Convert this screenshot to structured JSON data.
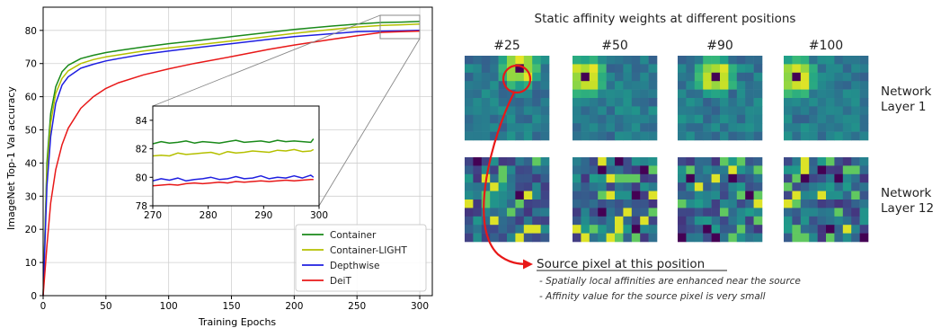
{
  "chart_data": [
    {
      "type": "line",
      "xlabel": "Training Epochs",
      "ylabel": "ImageNet Top-1 Val accuracy",
      "xlim": [
        0,
        310
      ],
      "ylim": [
        0,
        87
      ],
      "x_ticks": [
        0,
        50,
        100,
        150,
        200,
        250,
        300
      ],
      "y_ticks": [
        0,
        10,
        20,
        30,
        40,
        50,
        60,
        70,
        80
      ],
      "grid": true,
      "legend_position": "bottom-right",
      "x": [
        0,
        3,
        6,
        10,
        15,
        20,
        30,
        40,
        50,
        60,
        80,
        100,
        120,
        150,
        180,
        200,
        230,
        250,
        270,
        285,
        300
      ],
      "series": [
        {
          "name": "Container",
          "color": "#1a8a1a",
          "values": [
            0,
            40,
            55,
            63,
            67.5,
            69.5,
            71.5,
            72.5,
            73.3,
            73.9,
            75,
            76,
            76.8,
            78.1,
            79.4,
            80.3,
            81.3,
            81.9,
            82.4,
            82.5,
            82.7
          ]
        },
        {
          "name": "Container-LIGHT",
          "color": "#b5c000",
          "values": [
            0,
            37,
            52,
            61,
            65.5,
            67.8,
            70,
            71.2,
            72,
            72.6,
            73.8,
            74.7,
            75.5,
            76.8,
            78.2,
            79.1,
            80.3,
            81,
            81.5,
            81.7,
            81.9
          ]
        },
        {
          "name": "Depthwise",
          "color": "#1f1fe0",
          "values": [
            0,
            33,
            48,
            58,
            63.5,
            66,
            68.6,
            69.8,
            70.8,
            71.5,
            72.8,
            73.8,
            74.7,
            76,
            77.3,
            78.1,
            79,
            79.6,
            79.8,
            79.9,
            80
          ]
        },
        {
          "name": "DeiT",
          "color": "#e81818",
          "values": [
            0,
            15,
            28,
            38,
            45.5,
            50.5,
            56.5,
            60,
            62.5,
            64.2,
            66.6,
            68.4,
            70,
            72.1,
            74.3,
            75.6,
            77.3,
            78.4,
            79.4,
            79.6,
            79.8
          ]
        }
      ]
    },
    {
      "type": "line",
      "title": "",
      "xlim": [
        270,
        300
      ],
      "ylim": [
        78,
        85
      ],
      "x_ticks": [
        270,
        280,
        290,
        300
      ],
      "y_ticks": [
        78,
        80,
        82,
        84
      ],
      "grid": false,
      "x": [
        270,
        271.5,
        273,
        274.5,
        276,
        277.5,
        279,
        280.5,
        282,
        283.5,
        285,
        286.5,
        288,
        289.5,
        291,
        292.5,
        294,
        295.5,
        297,
        298.5,
        299
      ],
      "series": [
        {
          "name": "Container",
          "color": "#1a8a1a",
          "values": [
            82.35,
            82.5,
            82.4,
            82.45,
            82.55,
            82.4,
            82.5,
            82.45,
            82.4,
            82.5,
            82.6,
            82.45,
            82.5,
            82.55,
            82.45,
            82.6,
            82.5,
            82.55,
            82.5,
            82.45,
            82.7
          ]
        },
        {
          "name": "Container-LIGHT",
          "color": "#b5c000",
          "values": [
            81.5,
            81.55,
            81.5,
            81.7,
            81.6,
            81.65,
            81.7,
            81.75,
            81.6,
            81.8,
            81.7,
            81.75,
            81.85,
            81.8,
            81.75,
            81.9,
            81.85,
            81.95,
            81.8,
            81.85,
            81.95
          ]
        },
        {
          "name": "Depthwise",
          "color": "#1f1fe0",
          "values": [
            79.75,
            79.9,
            79.8,
            79.95,
            79.75,
            79.85,
            79.9,
            80.0,
            79.85,
            79.9,
            80.05,
            79.9,
            79.95,
            80.1,
            79.9,
            80.0,
            79.95,
            80.1,
            79.95,
            80.15,
            80.0
          ]
        },
        {
          "name": "DeiT",
          "color": "#e81818",
          "values": [
            79.4,
            79.45,
            79.5,
            79.45,
            79.55,
            79.6,
            79.55,
            79.6,
            79.65,
            79.6,
            79.7,
            79.65,
            79.7,
            79.75,
            79.7,
            79.75,
            79.8,
            79.75,
            79.8,
            79.85,
            79.85
          ]
        }
      ]
    },
    {
      "type": "heatmap",
      "title": "Static affinity weights at different positions",
      "grid_size": 10,
      "colormap": "viridis",
      "columns": [
        "#25",
        "#50",
        "#90",
        "#100"
      ],
      "rows": [
        {
          "label_line1": "Network",
          "label_line2": "Layer 1"
        },
        {
          "label_line1": "Network",
          "label_line2": "Layer 12"
        }
      ],
      "layer1_source_cells": [
        {
          "pos": "#25",
          "row": 1,
          "col": 6
        },
        {
          "pos": "#50",
          "row": 2,
          "col": 1
        },
        {
          "pos": "#90",
          "row": 2,
          "col": 4
        },
        {
          "pos": "#100",
          "row": 2,
          "col": 1
        }
      ]
    }
  ],
  "annotation": {
    "heading": "Source pixel at this position",
    "note1": "- Spatially local affinities are enhanced near the source",
    "note2": "- Affinity value for the source pixel is very small"
  },
  "colors": {
    "highlight_circle": "#e81818",
    "zoom_box": "#888888",
    "grid": "#d0d0d0"
  }
}
